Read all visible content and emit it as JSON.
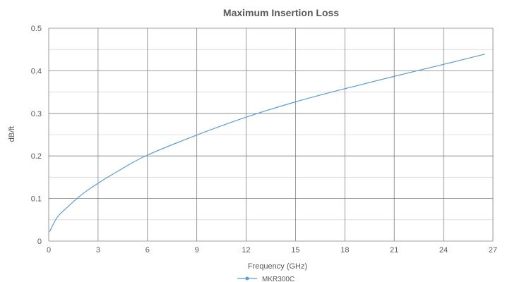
{
  "chart_data": {
    "type": "line",
    "title": "Maximum Insertion Loss",
    "xlabel": "Frequency  (GHz)",
    "ylabel": "dB/ft",
    "xlim": [
      0,
      27
    ],
    "ylim": [
      0,
      0.5
    ],
    "x_ticks": [
      "0",
      "3",
      "6",
      "9",
      "12",
      "15",
      "18",
      "21",
      "24",
      "27"
    ],
    "y_ticks": [
      "0",
      "0.1",
      "0.2",
      "0.3",
      "0.4",
      "0.5"
    ],
    "grid": true,
    "legend_position": "bottom",
    "series": [
      {
        "name": "MKR300C",
        "color": "#5b9bd5",
        "x": [
          0.05,
          0.5,
          1,
          2,
          3,
          4.5,
          6,
          9,
          12,
          15,
          18,
          21,
          24,
          26.5
        ],
        "y": [
          0.022,
          0.055,
          0.075,
          0.109,
          0.136,
          0.171,
          0.202,
          0.249,
          0.291,
          0.327,
          0.358,
          0.387,
          0.415,
          0.439
        ]
      }
    ]
  }
}
